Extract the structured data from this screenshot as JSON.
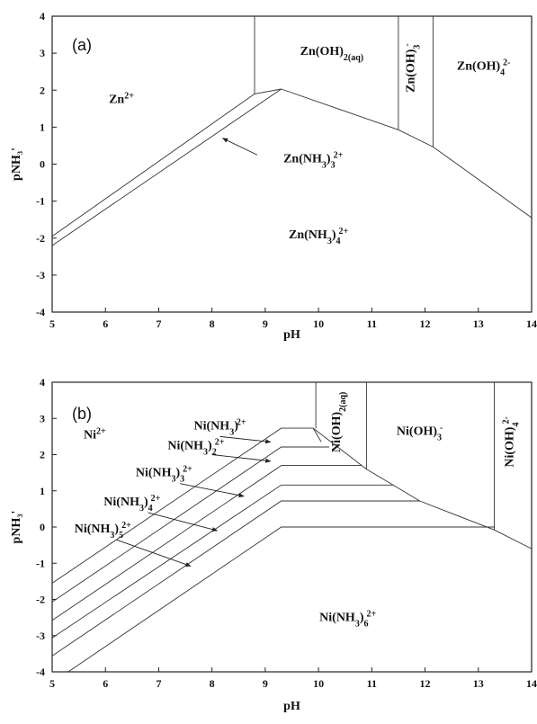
{
  "chart_data": [
    {
      "type": "line",
      "panel_label": "(a)",
      "xlabel": "pH",
      "ylabel": "pNH₃'",
      "xlim": [
        5,
        14
      ],
      "ylim": [
        -4,
        4
      ],
      "xticks": [
        "5",
        "6",
        "7",
        "8",
        "9",
        "10",
        "11",
        "12",
        "13",
        "14"
      ],
      "yticks": [
        "4",
        "3",
        "2",
        "1",
        "0",
        "-1",
        "-2",
        "-3",
        "-4"
      ],
      "boundaries": [
        {
          "name": "Zn2+ / Zn(NH3)3 2+ upper",
          "x": [
            5,
            8.8,
            9.3
          ],
          "y": [
            -1.95,
            1.9,
            2.03
          ]
        },
        {
          "name": "Zn2+ / Zn(NH3)3 2+ lower",
          "x": [
            5,
            9.3
          ],
          "y": [
            -2.2,
            2.03
          ]
        },
        {
          "name": "Zn(NH3)4 2+ upper",
          "x": [
            9.3,
            11.5,
            12.15,
            14
          ],
          "y": [
            2.03,
            0.93,
            0.47,
            -1.45
          ]
        },
        {
          "name": "Zn(OH)2 left",
          "x": [
            8.8,
            8.8
          ],
          "y": [
            1.9,
            4
          ]
        },
        {
          "name": "Zn(OH)3- left",
          "x": [
            11.5,
            11.5
          ],
          "y": [
            0.93,
            4
          ]
        },
        {
          "name": "Zn(OH)3- right",
          "x": [
            12.15,
            12.15
          ],
          "y": [
            0.47,
            4
          ]
        }
      ],
      "regions": [
        {
          "label": "Zn",
          "sup": "2+",
          "x": 6.3,
          "y": 1.65
        },
        {
          "label": "Zn(OH)",
          "sub": "2(aq)",
          "x": 10.25,
          "y": 2.95
        },
        {
          "label": "Zn(OH)",
          "sub": "3",
          "sup": "-",
          "x": 11.8,
          "y": 2.6,
          "rotated": true
        },
        {
          "label": "Zn(OH)",
          "sub": "4",
          "sup": "2-",
          "x": 13.1,
          "y": 2.55
        },
        {
          "label": "Zn(NH",
          "sub": "3",
          "post": ")",
          "sub2": "3",
          "sup": "2+",
          "x": 9.9,
          "y": 0.05
        },
        {
          "label": "Zn(NH",
          "sub": "3",
          "post": ")",
          "sub2": "4",
          "sup": "2+",
          "x": 10.0,
          "y": -2.0
        }
      ],
      "arrows": [
        {
          "from_x": 8.85,
          "from_y": 0.25,
          "to_x": 8.2,
          "to_y": 0.7
        }
      ]
    },
    {
      "type": "line",
      "panel_label": "(b)",
      "xlabel": "pH",
      "ylabel": "pNH₃'",
      "xlim": [
        5,
        14
      ],
      "ylim": [
        -4,
        4
      ],
      "xticks": [
        "5",
        "6",
        "7",
        "8",
        "9",
        "10",
        "11",
        "12",
        "13",
        "14"
      ],
      "yticks": [
        "4",
        "3",
        "2",
        "1",
        "0",
        "-1",
        "-2",
        "-3",
        "-4"
      ],
      "boundaries": [
        {
          "name": "Ni2+ / Ni(NH3)2+",
          "x": [
            5,
            9.3,
            9.9,
            10.05
          ],
          "y": [
            -1.55,
            2.73,
            2.73,
            2.35
          ]
        },
        {
          "name": "Ni(NH3)2+ / Ni(NH3)2 2+",
          "x": [
            5,
            9.3,
            10.2
          ],
          "y": [
            -2.07,
            2.21,
            2.21
          ]
        },
        {
          "name": "Ni(NH3)2 2+ / Ni(NH3)3 2+",
          "x": [
            5,
            9.3,
            10.8
          ],
          "y": [
            -2.58,
            1.7,
            1.7
          ]
        },
        {
          "name": "Ni(NH3)3 2+ / Ni(NH3)4 2+",
          "x": [
            5,
            9.3,
            11.4
          ],
          "y": [
            -3.06,
            1.16,
            1.16
          ]
        },
        {
          "name": "Ni(NH3)4 2+ / Ni(NH3)5 2+",
          "x": [
            5,
            9.3,
            11.9
          ],
          "y": [
            -3.56,
            0.72,
            0.72
          ]
        },
        {
          "name": "Ni(NH3)5 2+ / Ni(NH3)6 2+",
          "x": [
            5.3,
            9.3,
            13.3
          ],
          "y": [
            -4,
            0,
            0
          ]
        },
        {
          "name": "Ni(NH3)6 2+ upper",
          "x": [
            9.9,
            10.9,
            11.4,
            11.9,
            13.3,
            14
          ],
          "y": [
            2.73,
            1.6,
            1.16,
            0.72,
            -0.08,
            -0.6
          ]
        },
        {
          "name": "Ni(OH)2 left",
          "x": [
            9.95,
            9.95
          ],
          "y": [
            2.73,
            4
          ]
        },
        {
          "name": "Ni(OH)2 right",
          "x": [
            10.9,
            10.9
          ],
          "y": [
            1.6,
            4
          ]
        },
        {
          "name": "Ni(OH)4 2- left",
          "x": [
            13.3,
            13.3
          ],
          "y": [
            -0.08,
            4
          ]
        }
      ],
      "regions": [
        {
          "label": "Ni",
          "sup": "2+",
          "x": 5.8,
          "y": 2.45
        },
        {
          "label": "Ni(OH)",
          "sub": "2(aq)",
          "x": 10.4,
          "y": 2.9,
          "rotated": true
        },
        {
          "label": "Ni(OH)",
          "sub": "3",
          "sup": "-",
          "x": 11.9,
          "y": 2.55
        },
        {
          "label": "Ni(OH)",
          "sub": "4",
          "sup": "2-",
          "x": 13.65,
          "y": 2.35,
          "rotated": true
        },
        {
          "label": "Ni(NH",
          "sub": "3",
          "post": ")",
          "sup": "2+",
          "x": 8.15,
          "y": 2.7
        },
        {
          "label": "Ni(NH",
          "sub": "3",
          "post": ")",
          "sub2": "2",
          "sup": "2+",
          "x": 7.7,
          "y": 2.15
        },
        {
          "label": "Ni(NH",
          "sub": "3",
          "post": ")",
          "sub2": "3",
          "sup": "2+",
          "x": 7.1,
          "y": 1.4
        },
        {
          "label": "Ni(NH",
          "sub": "3",
          "post": ")",
          "sub2": "4",
          "sup": "2+",
          "x": 6.5,
          "y": 0.6
        },
        {
          "label": "Ni(NH",
          "sub": "3",
          "post": ")",
          "sub2": "5",
          "sup": "2+",
          "x": 5.95,
          "y": -0.15
        },
        {
          "label": "Ni(NH",
          "sub": "3",
          "post": ")",
          "sub2": "6",
          "sup": "2+",
          "x": 10.55,
          "y": -2.6
        }
      ],
      "arrows": [
        {
          "from_x": 8.15,
          "from_y": 2.5,
          "to_x": 9.1,
          "to_y": 2.35
        },
        {
          "from_x": 8.0,
          "from_y": 2.0,
          "to_x": 9.1,
          "to_y": 1.82
        },
        {
          "from_x": 7.4,
          "from_y": 1.2,
          "to_x": 8.6,
          "to_y": 0.85
        },
        {
          "from_x": 6.8,
          "from_y": 0.4,
          "to_x": 8.1,
          "to_y": -0.1
        },
        {
          "from_x": 6.2,
          "from_y": -0.35,
          "to_x": 7.6,
          "to_y": -1.08
        }
      ]
    }
  ]
}
